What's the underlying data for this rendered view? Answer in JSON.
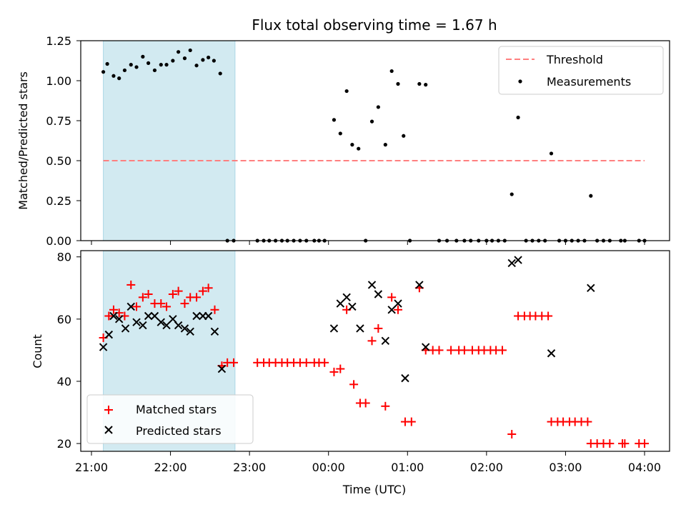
{
  "chart_data": [
    {
      "type": "scatter",
      "title": "Flux total observing time = 1.67 h",
      "ylabel": "Matched/Predicted stars",
      "xlabel": "",
      "x_axis_unit": "hours since 21:00 UTC",
      "ylim": [
        0,
        1.25
      ],
      "yticks": [
        "0.00",
        "0.25",
        "0.50",
        "0.75",
        "1.00",
        "1.25"
      ],
      "shaded_interval": [
        "21:09",
        "22:49"
      ],
      "threshold": 0.5,
      "legend": {
        "position": "top-right",
        "threshold_label": "Threshold",
        "measurements_label": "Measurements"
      },
      "colors": {
        "threshold": "#ff7f7f",
        "measurements": "#000000",
        "shade": "#add8e6"
      },
      "measurements": [
        [
          0.15,
          1.055
        ],
        [
          0.2,
          1.105
        ],
        [
          0.28,
          1.03
        ],
        [
          0.35,
          1.015
        ],
        [
          0.42,
          1.065
        ],
        [
          0.5,
          1.1
        ],
        [
          0.57,
          1.085
        ],
        [
          0.65,
          1.15
        ],
        [
          0.72,
          1.11
        ],
        [
          0.8,
          1.065
        ],
        [
          0.88,
          1.1
        ],
        [
          0.95,
          1.1
        ],
        [
          1.03,
          1.125
        ],
        [
          1.1,
          1.18
        ],
        [
          1.18,
          1.14
        ],
        [
          1.25,
          1.19
        ],
        [
          1.33,
          1.095
        ],
        [
          1.41,
          1.13
        ],
        [
          1.48,
          1.145
        ],
        [
          1.55,
          1.125
        ],
        [
          1.63,
          1.045
        ],
        [
          1.72,
          0.0
        ],
        [
          1.8,
          0.0
        ],
        [
          2.1,
          0.0
        ],
        [
          2.18,
          0.0
        ],
        [
          2.25,
          0.0
        ],
        [
          2.33,
          0.0
        ],
        [
          2.41,
          0.0
        ],
        [
          2.48,
          0.0
        ],
        [
          2.56,
          0.0
        ],
        [
          2.64,
          0.0
        ],
        [
          2.72,
          0.0
        ],
        [
          2.82,
          0.0
        ],
        [
          2.88,
          0.0
        ],
        [
          2.95,
          0.0
        ],
        [
          3.07,
          0.755
        ],
        [
          3.15,
          0.67
        ],
        [
          3.23,
          0.935
        ],
        [
          3.3,
          0.6
        ],
        [
          3.38,
          0.575
        ],
        [
          3.47,
          0.0
        ],
        [
          3.55,
          0.745
        ],
        [
          3.63,
          0.835
        ],
        [
          3.72,
          0.6
        ],
        [
          3.8,
          1.06
        ],
        [
          3.88,
          0.98
        ],
        [
          3.95,
          0.655
        ],
        [
          4.03,
          0.0
        ],
        [
          4.15,
          0.98
        ],
        [
          4.23,
          0.975
        ],
        [
          4.4,
          0.0
        ],
        [
          4.5,
          0.0
        ],
        [
          4.62,
          0.0
        ],
        [
          4.72,
          0.0
        ],
        [
          4.8,
          0.0
        ],
        [
          4.9,
          0.0
        ],
        [
          5.0,
          0.0
        ],
        [
          5.07,
          0.0
        ],
        [
          5.15,
          0.0
        ],
        [
          5.23,
          0.0
        ],
        [
          5.32,
          0.29
        ],
        [
          5.4,
          0.77
        ],
        [
          5.5,
          0.0
        ],
        [
          5.58,
          0.0
        ],
        [
          5.66,
          0.0
        ],
        [
          5.74,
          0.0
        ],
        [
          5.82,
          0.545
        ],
        [
          5.92,
          0.0
        ],
        [
          6.0,
          0.0
        ],
        [
          6.08,
          0.0
        ],
        [
          6.16,
          0.0
        ],
        [
          6.24,
          0.0
        ],
        [
          6.32,
          0.28
        ],
        [
          6.4,
          0.0
        ],
        [
          6.48,
          0.0
        ],
        [
          6.56,
          0.0
        ],
        [
          6.7,
          0.0
        ],
        [
          6.75,
          0.0
        ],
        [
          6.93,
          0.0
        ],
        [
          7.0,
          0.0
        ]
      ]
    },
    {
      "type": "scatter",
      "title": "",
      "ylabel": "Count",
      "xlabel": "Time (UTC)",
      "ylim": [
        17.5,
        82
      ],
      "yticks": [
        "20",
        "40",
        "60",
        "80"
      ],
      "xticks": [
        "21:00",
        "22:00",
        "23:00",
        "00:00",
        "01:00",
        "02:00",
        "03:00",
        "04:00"
      ],
      "shaded_interval": [
        "21:09",
        "22:49"
      ],
      "legend": {
        "position": "bottom-left"
      },
      "colors": {
        "matched": "#ff0000",
        "predicted": "#000000",
        "shade": "#add8e6"
      },
      "series": [
        {
          "name": "Matched stars",
          "marker": "plus",
          "points": [
            [
              0.15,
              54
            ],
            [
              0.22,
              61
            ],
            [
              0.28,
              63
            ],
            [
              0.35,
              62
            ],
            [
              0.42,
              61
            ],
            [
              0.5,
              71
            ],
            [
              0.57,
              64
            ],
            [
              0.65,
              67
            ],
            [
              0.72,
              68
            ],
            [
              0.8,
              65
            ],
            [
              0.88,
              65
            ],
            [
              0.95,
              64
            ],
            [
              1.03,
              68
            ],
            [
              1.1,
              69
            ],
            [
              1.18,
              65
            ],
            [
              1.25,
              67
            ],
            [
              1.33,
              67
            ],
            [
              1.41,
              69
            ],
            [
              1.48,
              70
            ],
            [
              1.56,
              63
            ],
            [
              1.65,
              45
            ],
            [
              1.72,
              46
            ],
            [
              1.8,
              46
            ],
            [
              2.1,
              46
            ],
            [
              2.18,
              46
            ],
            [
              2.25,
              46
            ],
            [
              2.33,
              46
            ],
            [
              2.41,
              46
            ],
            [
              2.48,
              46
            ],
            [
              2.56,
              46
            ],
            [
              2.64,
              46
            ],
            [
              2.72,
              46
            ],
            [
              2.82,
              46
            ],
            [
              2.88,
              46
            ],
            [
              2.95,
              46
            ],
            [
              3.07,
              43
            ],
            [
              3.15,
              44
            ],
            [
              3.23,
              63
            ],
            [
              3.32,
              39
            ],
            [
              3.4,
              33
            ],
            [
              3.47,
              33
            ],
            [
              3.55,
              53
            ],
            [
              3.63,
              57
            ],
            [
              3.72,
              32
            ],
            [
              3.8,
              67
            ],
            [
              3.88,
              63
            ],
            [
              3.97,
              27
            ],
            [
              4.05,
              27
            ],
            [
              4.15,
              70
            ],
            [
              4.23,
              50
            ],
            [
              4.32,
              50
            ],
            [
              4.4,
              50
            ],
            [
              4.55,
              50
            ],
            [
              4.65,
              50
            ],
            [
              4.72,
              50
            ],
            [
              4.82,
              50
            ],
            [
              4.9,
              50
            ],
            [
              4.97,
              50
            ],
            [
              5.05,
              50
            ],
            [
              5.12,
              50
            ],
            [
              5.2,
              50
            ],
            [
              5.32,
              23
            ],
            [
              5.4,
              61
            ],
            [
              5.48,
              61
            ],
            [
              5.55,
              61
            ],
            [
              5.62,
              61
            ],
            [
              5.7,
              61
            ],
            [
              5.78,
              61
            ],
            [
              5.82,
              27
            ],
            [
              5.9,
              27
            ],
            [
              5.97,
              27
            ],
            [
              6.05,
              27
            ],
            [
              6.12,
              27
            ],
            [
              6.2,
              27
            ],
            [
              6.28,
              27
            ],
            [
              6.32,
              20
            ],
            [
              6.4,
              20
            ],
            [
              6.48,
              20
            ],
            [
              6.56,
              20
            ],
            [
              6.72,
              20
            ],
            [
              6.75,
              20
            ],
            [
              6.93,
              20
            ],
            [
              7.0,
              20
            ]
          ]
        },
        {
          "name": "Predicted stars",
          "marker": "x",
          "points": [
            [
              0.15,
              51
            ],
            [
              0.22,
              55
            ],
            [
              0.28,
              61
            ],
            [
              0.35,
              60
            ],
            [
              0.43,
              57
            ],
            [
              0.5,
              64
            ],
            [
              0.57,
              59
            ],
            [
              0.65,
              58
            ],
            [
              0.72,
              61
            ],
            [
              0.8,
              61
            ],
            [
              0.88,
              59
            ],
            [
              0.95,
              58
            ],
            [
              1.03,
              60
            ],
            [
              1.1,
              58
            ],
            [
              1.18,
              57
            ],
            [
              1.25,
              56
            ],
            [
              1.33,
              61
            ],
            [
              1.41,
              61
            ],
            [
              1.48,
              61
            ],
            [
              1.56,
              56
            ],
            [
              1.65,
              44
            ],
            [
              3.07,
              57
            ],
            [
              3.15,
              65
            ],
            [
              3.23,
              67
            ],
            [
              3.3,
              64
            ],
            [
              3.4,
              57
            ],
            [
              3.55,
              71
            ],
            [
              3.63,
              68
            ],
            [
              3.72,
              53
            ],
            [
              3.8,
              63
            ],
            [
              3.88,
              65
            ],
            [
              3.97,
              41
            ],
            [
              4.15,
              71
            ],
            [
              4.23,
              51
            ],
            [
              5.32,
              78
            ],
            [
              5.4,
              79
            ],
            [
              5.82,
              49
            ],
            [
              6.32,
              70
            ]
          ]
        }
      ]
    }
  ]
}
